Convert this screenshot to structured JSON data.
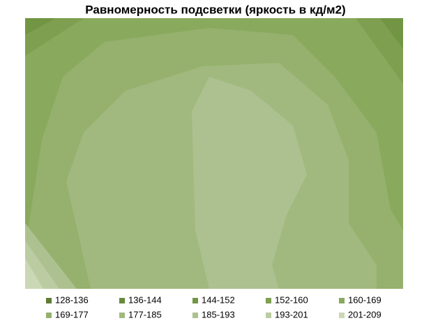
{
  "chart_data": {
    "type": "contour",
    "title": "Равномерность подсветки (яркость в кд/м2)",
    "series": [
      {
        "name": "128-136",
        "color": "#5e7d34"
      },
      {
        "name": "136-144",
        "color": "#678a3b"
      },
      {
        "name": "144-152",
        "color": "#719543"
      },
      {
        "name": "152-160",
        "color": "#7d9f4f"
      },
      {
        "name": "160-169",
        "color": "#89a95d"
      },
      {
        "name": "169-177",
        "color": "#95b16d"
      },
      {
        "name": "177-185",
        "color": "#a1b97f"
      },
      {
        "name": "185-193",
        "color": "#adc190"
      },
      {
        "name": "193-201",
        "color": "#bbcca2"
      },
      {
        "name": "201-209",
        "color": "#cad8b5"
      }
    ]
  }
}
